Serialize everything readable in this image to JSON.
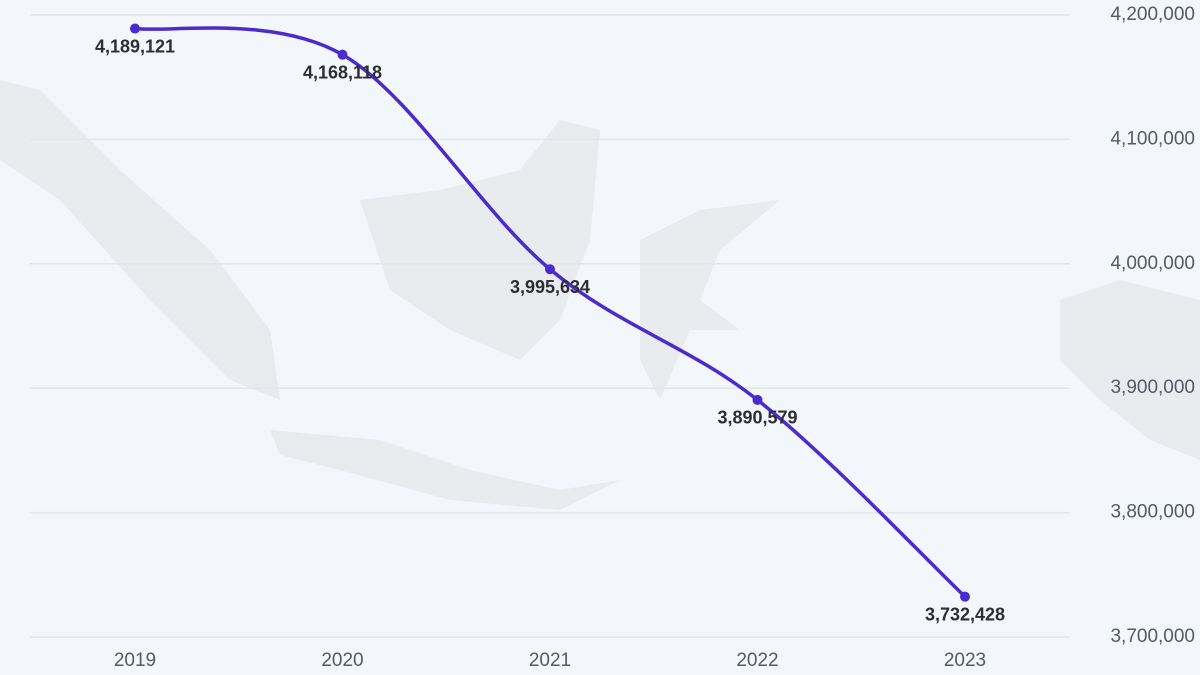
{
  "chart_data": {
    "type": "line",
    "categories": [
      "2019",
      "2020",
      "2021",
      "2022",
      "2023"
    ],
    "values": [
      4189121,
      4168118,
      3995634,
      3890579,
      3732428
    ],
    "value_labels": [
      "4,189,121",
      "4,168,118",
      "3,995,634",
      "3,890,579",
      "3,732,428"
    ],
    "color": "#4a2bd0",
    "ylim": [
      3700000,
      4200000
    ],
    "yticks": [
      {
        "value": 3700000,
        "label": "3,700,000"
      },
      {
        "value": 3800000,
        "label": "3,800,000"
      },
      {
        "value": 3900000,
        "label": "3,900,000"
      },
      {
        "value": 4000000,
        "label": "4,000,000"
      },
      {
        "value": 4100000,
        "label": "4,100,000"
      },
      {
        "value": 4200000,
        "label": "4,200,000"
      }
    ],
    "grid": true
  }
}
